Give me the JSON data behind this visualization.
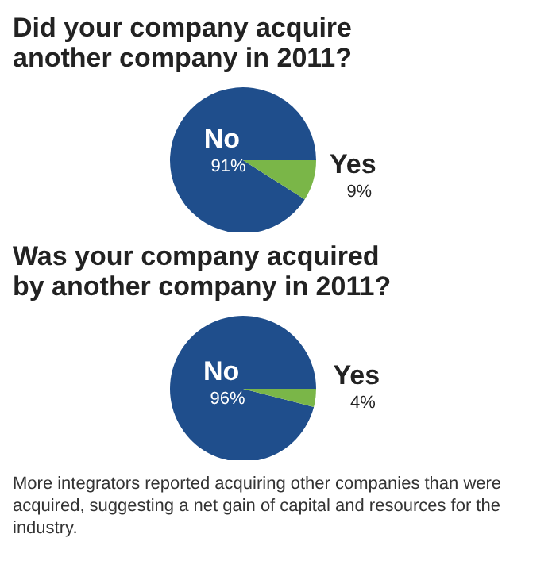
{
  "chart_data": [
    {
      "type": "pie",
      "title": "Did your company acquire another company in 2011?",
      "categories": [
        "No",
        "Yes"
      ],
      "values": [
        91,
        9
      ],
      "colors": [
        "#1f4e8c",
        "#7ab648"
      ],
      "value_labels": [
        "91%",
        "9%"
      ]
    },
    {
      "type": "pie",
      "title": "Was your company acquired by another company in 2011?",
      "categories": [
        "No",
        "Yes"
      ],
      "values": [
        96,
        4
      ],
      "colors": [
        "#1f4e8c",
        "#7ab648"
      ],
      "value_labels": [
        "96%",
        "4%"
      ],
      "annotations": [
        "More integrators reported acquiring other companies than were acquired, suggesting a net gain of capital and resources for the industry."
      ]
    }
  ]
}
